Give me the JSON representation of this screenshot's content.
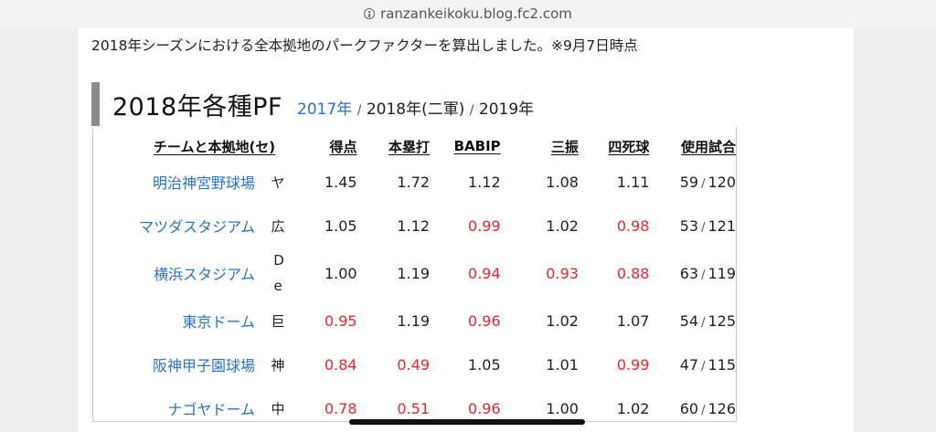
{
  "browser": {
    "url": "ranzankeikoku.blog.fc2.com",
    "icon": "info-circle-icon"
  },
  "intro": "2018年シーズンにおける全本拠地のパークファクターを算出しました。※9月7日時点",
  "heading": {
    "title": "2018年各種PF",
    "links": [
      {
        "label": "2017年",
        "is_link": true
      },
      {
        "label": "2018年(二軍)",
        "is_link": false
      },
      {
        "label": "2019年",
        "is_link": false
      }
    ],
    "separator": "/"
  },
  "table": {
    "headers": [
      "チームと本拠地(セ)",
      "得点",
      "本塁打",
      "BABIP",
      "三振",
      "四死球",
      "使用試合"
    ],
    "rows": [
      {
        "park": "明治神宮野球場",
        "team": "ヤ",
        "runs": "1.45",
        "hr": "1.72",
        "babip": "1.12",
        "so": "1.08",
        "bb": "1.11",
        "games_used": "59",
        "games_total": "120",
        "red": {
          "runs": false,
          "hr": false,
          "babip": false,
          "so": false,
          "bb": false
        }
      },
      {
        "park": "マツダスタジアム",
        "team": "広",
        "runs": "1.05",
        "hr": "1.12",
        "babip": "0.99",
        "so": "1.02",
        "bb": "0.98",
        "games_used": "53",
        "games_total": "121",
        "red": {
          "runs": false,
          "hr": false,
          "babip": true,
          "so": false,
          "bb": true
        }
      },
      {
        "park": "横浜スタジアム",
        "team": "De",
        "runs": "1.00",
        "hr": "1.19",
        "babip": "0.94",
        "so": "0.93",
        "bb": "0.88",
        "games_used": "63",
        "games_total": "119",
        "red": {
          "runs": false,
          "hr": false,
          "babip": true,
          "so": true,
          "bb": true
        }
      },
      {
        "park": "東京ドーム",
        "team": "巨",
        "runs": "0.95",
        "hr": "1.19",
        "babip": "0.96",
        "so": "1.02",
        "bb": "1.07",
        "games_used": "54",
        "games_total": "125",
        "red": {
          "runs": true,
          "hr": false,
          "babip": true,
          "so": false,
          "bb": false
        }
      },
      {
        "park": "阪神甲子園球場",
        "team": "神",
        "runs": "0.84",
        "hr": "0.49",
        "babip": "1.05",
        "so": "1.01",
        "bb": "0.99",
        "games_used": "47",
        "games_total": "115",
        "red": {
          "runs": true,
          "hr": true,
          "babip": false,
          "so": false,
          "bb": true
        }
      },
      {
        "park": "ナゴヤドーム",
        "team": "中",
        "runs": "0.78",
        "hr": "0.51",
        "babip": "0.96",
        "so": "1.00",
        "bb": "1.02",
        "games_used": "60",
        "games_total": "126",
        "red": {
          "runs": true,
          "hr": true,
          "babip": true,
          "so": false,
          "bb": false
        }
      }
    ]
  },
  "colors": {
    "link": "#2a73c2",
    "below_one": "#e8262d",
    "heading_bar": "#8a8a8a"
  }
}
